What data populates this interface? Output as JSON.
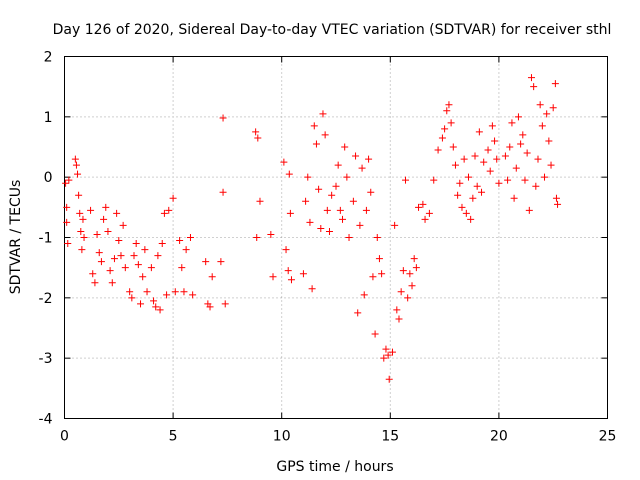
{
  "chart_data": {
    "type": "scatter",
    "title": "Day 126 of 2020, Sidereal Day-to-day VTEC variation (SDTVAR) for receiver sthl",
    "xlabel": "GPS time / hours",
    "ylabel": "SDTVAR / TECUs",
    "xlim": [
      0,
      25
    ],
    "ylim": [
      -4,
      2
    ],
    "xticks": [
      0,
      5,
      10,
      15,
      20,
      25
    ],
    "xtick_labels": [
      "0",
      "5",
      "10",
      "15",
      "20",
      "25"
    ],
    "yticks": [
      -4,
      -3,
      -2,
      -1,
      0,
      1,
      2
    ],
    "ytick_labels": [
      "-4",
      "-3",
      "-2",
      "-1",
      "0",
      "1",
      "2"
    ],
    "grid": true,
    "marker": "+",
    "color": "#ff0000",
    "series": [
      {
        "name": "sthl",
        "points": [
          [
            0.05,
            -0.1
          ],
          [
            0.1,
            -0.5
          ],
          [
            0.1,
            -0.75
          ],
          [
            0.15,
            -1.1
          ],
          [
            0.2,
            -0.05
          ],
          [
            0.5,
            0.3
          ],
          [
            0.55,
            0.2
          ],
          [
            0.6,
            0.05
          ],
          [
            0.65,
            -0.3
          ],
          [
            0.7,
            -0.6
          ],
          [
            0.75,
            -0.9
          ],
          [
            0.8,
            -1.2
          ],
          [
            0.85,
            -0.7
          ],
          [
            0.9,
            -1.0
          ],
          [
            1.2,
            -0.55
          ],
          [
            1.3,
            -1.6
          ],
          [
            1.4,
            -1.75
          ],
          [
            1.5,
            -0.95
          ],
          [
            1.6,
            -1.25
          ],
          [
            1.7,
            -1.4
          ],
          [
            1.8,
            -0.7
          ],
          [
            1.9,
            -0.5
          ],
          [
            2.0,
            -0.9
          ],
          [
            2.1,
            -1.55
          ],
          [
            2.2,
            -1.75
          ],
          [
            2.3,
            -1.35
          ],
          [
            2.4,
            -0.6
          ],
          [
            2.5,
            -1.05
          ],
          [
            2.6,
            -1.3
          ],
          [
            2.7,
            -0.8
          ],
          [
            2.8,
            -1.5
          ],
          [
            3.0,
            -1.9
          ],
          [
            3.1,
            -2.0
          ],
          [
            3.2,
            -1.3
          ],
          [
            3.3,
            -1.1
          ],
          [
            3.4,
            -1.45
          ],
          [
            3.5,
            -2.1
          ],
          [
            3.6,
            -1.65
          ],
          [
            3.7,
            -1.2
          ],
          [
            3.8,
            -1.9
          ],
          [
            4.0,
            -1.5
          ],
          [
            4.1,
            -2.05
          ],
          [
            4.2,
            -2.15
          ],
          [
            4.3,
            -1.3
          ],
          [
            4.4,
            -2.2
          ],
          [
            4.5,
            -1.1
          ],
          [
            4.6,
            -0.6
          ],
          [
            4.7,
            -1.95
          ],
          [
            4.8,
            -0.55
          ],
          [
            5.0,
            -0.35
          ],
          [
            5.1,
            -1.9
          ],
          [
            5.3,
            -1.05
          ],
          [
            5.4,
            -1.5
          ],
          [
            5.5,
            -1.9
          ],
          [
            5.6,
            -1.2
          ],
          [
            5.8,
            -1.0
          ],
          [
            5.9,
            -1.95
          ],
          [
            6.5,
            -1.4
          ],
          [
            6.6,
            -2.1
          ],
          [
            6.7,
            -2.15
          ],
          [
            6.8,
            -1.65
          ],
          [
            7.2,
            -1.4
          ],
          [
            7.3,
            -0.25
          ],
          [
            7.3,
            0.98
          ],
          [
            7.4,
            -2.1
          ],
          [
            8.8,
            0.75
          ],
          [
            8.85,
            -1.0
          ],
          [
            8.9,
            0.65
          ],
          [
            9.0,
            -0.4
          ],
          [
            9.5,
            -0.95
          ],
          [
            9.6,
            -1.65
          ],
          [
            10.1,
            0.25
          ],
          [
            10.2,
            -1.2
          ],
          [
            10.3,
            -1.55
          ],
          [
            10.35,
            0.05
          ],
          [
            10.4,
            -0.6
          ],
          [
            10.45,
            -1.7
          ],
          [
            11.0,
            -1.6
          ],
          [
            11.1,
            -0.4
          ],
          [
            11.2,
            0.0
          ],
          [
            11.3,
            -0.75
          ],
          [
            11.4,
            -1.85
          ],
          [
            11.5,
            0.85
          ],
          [
            11.6,
            0.55
          ],
          [
            11.7,
            -0.2
          ],
          [
            11.8,
            -0.85
          ],
          [
            11.9,
            1.05
          ],
          [
            12.0,
            0.7
          ],
          [
            12.1,
            -0.55
          ],
          [
            12.2,
            -0.9
          ],
          [
            12.3,
            -0.3
          ],
          [
            12.5,
            -0.15
          ],
          [
            12.6,
            0.2
          ],
          [
            12.7,
            -0.55
          ],
          [
            12.8,
            -0.7
          ],
          [
            12.9,
            0.5
          ],
          [
            13.0,
            0.0
          ],
          [
            13.1,
            -1.0
          ],
          [
            13.3,
            -0.4
          ],
          [
            13.4,
            0.35
          ],
          [
            13.5,
            -2.25
          ],
          [
            13.6,
            -0.8
          ],
          [
            13.7,
            0.15
          ],
          [
            13.8,
            -1.95
          ],
          [
            13.9,
            -0.55
          ],
          [
            14.0,
            0.3
          ],
          [
            14.1,
            -0.25
          ],
          [
            14.2,
            -1.65
          ],
          [
            14.3,
            -2.6
          ],
          [
            14.4,
            -1.0
          ],
          [
            14.5,
            -1.35
          ],
          [
            14.6,
            -1.6
          ],
          [
            14.7,
            -3.0
          ],
          [
            14.8,
            -2.85
          ],
          [
            14.9,
            -2.95
          ],
          [
            14.95,
            -3.35
          ],
          [
            15.1,
            -2.9
          ],
          [
            15.2,
            -0.8
          ],
          [
            15.3,
            -2.2
          ],
          [
            15.4,
            -2.35
          ],
          [
            15.5,
            -1.9
          ],
          [
            15.6,
            -1.55
          ],
          [
            15.7,
            -0.05
          ],
          [
            15.8,
            -2.0
          ],
          [
            15.9,
            -1.6
          ],
          [
            16.0,
            -1.8
          ],
          [
            16.1,
            -1.35
          ],
          [
            16.2,
            -1.5
          ],
          [
            16.3,
            -0.5
          ],
          [
            16.5,
            -0.45
          ],
          [
            16.6,
            -0.7
          ],
          [
            16.8,
            -0.6
          ],
          [
            17.0,
            -0.05
          ],
          [
            17.2,
            0.45
          ],
          [
            17.4,
            0.65
          ],
          [
            17.5,
            0.8
          ],
          [
            17.6,
            1.1
          ],
          [
            17.7,
            1.2
          ],
          [
            17.8,
            0.9
          ],
          [
            17.9,
            0.5
          ],
          [
            18.0,
            0.2
          ],
          [
            18.1,
            -0.3
          ],
          [
            18.2,
            -0.1
          ],
          [
            18.3,
            -0.5
          ],
          [
            18.4,
            0.3
          ],
          [
            18.5,
            -0.6
          ],
          [
            18.6,
            0.0
          ],
          [
            18.7,
            -0.7
          ],
          [
            18.8,
            -0.35
          ],
          [
            18.9,
            0.35
          ],
          [
            19.0,
            -0.15
          ],
          [
            19.1,
            0.75
          ],
          [
            19.2,
            -0.25
          ],
          [
            19.3,
            0.25
          ],
          [
            19.5,
            0.45
          ],
          [
            19.6,
            0.1
          ],
          [
            19.7,
            0.85
          ],
          [
            19.8,
            0.6
          ],
          [
            19.9,
            0.3
          ],
          [
            20.0,
            -0.1
          ],
          [
            20.3,
            0.35
          ],
          [
            20.4,
            -0.05
          ],
          [
            20.5,
            0.5
          ],
          [
            20.6,
            0.9
          ],
          [
            20.7,
            -0.35
          ],
          [
            20.8,
            0.15
          ],
          [
            20.9,
            1.0
          ],
          [
            21.0,
            0.55
          ],
          [
            21.1,
            0.7
          ],
          [
            21.2,
            -0.05
          ],
          [
            21.3,
            0.4
          ],
          [
            21.4,
            -0.55
          ],
          [
            21.5,
            1.65
          ],
          [
            21.6,
            1.5
          ],
          [
            21.7,
            -0.15
          ],
          [
            21.8,
            0.3
          ],
          [
            21.9,
            1.2
          ],
          [
            22.0,
            0.85
          ],
          [
            22.1,
            0.0
          ],
          [
            22.2,
            1.05
          ],
          [
            22.3,
            0.6
          ],
          [
            22.4,
            0.2
          ],
          [
            22.5,
            1.15
          ],
          [
            22.6,
            1.55
          ],
          [
            22.65,
            -0.35
          ],
          [
            22.7,
            -0.45
          ]
        ]
      }
    ]
  }
}
